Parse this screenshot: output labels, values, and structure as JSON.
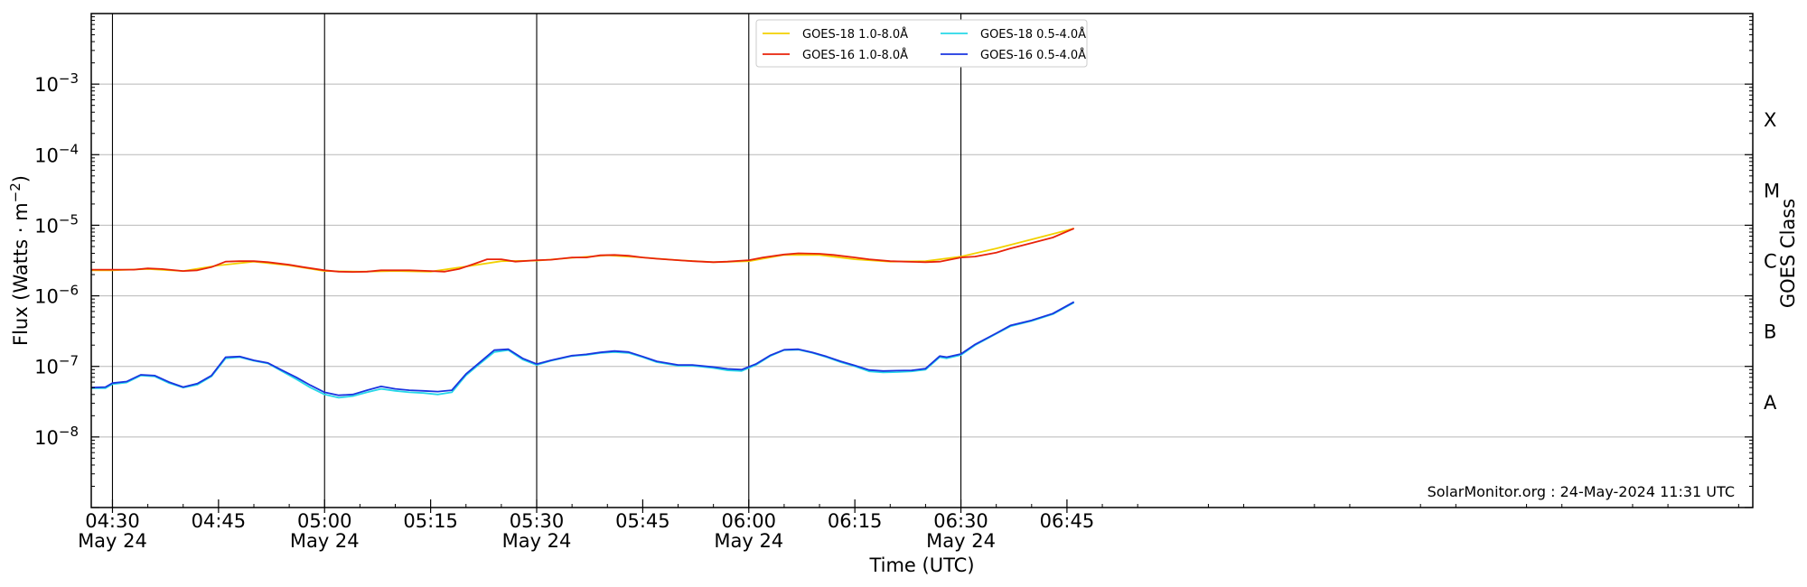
{
  "chart_data": {
    "type": "line",
    "xlabel": "Time (UTC)",
    "ylabel": "Flux (Watts · m",
    "ylabel_sup": "−2",
    "ylabel_close": ")",
    "right_label": "GOES Class",
    "credit": "SolarMonitor.org : 24-May-2024 11:31 UTC",
    "xlim_minutes": [
      27,
      262
    ],
    "ylim_log10": [
      -9,
      -2
    ],
    "yscale": "log",
    "grid": "horizontal",
    "legend_position": "top-center",
    "y_ticks": [
      {
        "exp": -8,
        "base": "10",
        "sup": "−8"
      },
      {
        "exp": -7,
        "base": "10",
        "sup": "−7"
      },
      {
        "exp": -6,
        "base": "10",
        "sup": "−6"
      },
      {
        "exp": -5,
        "base": "10",
        "sup": "−5"
      },
      {
        "exp": -4,
        "base": "10",
        "sup": "−4"
      },
      {
        "exp": -3,
        "base": "10",
        "sup": "−3"
      }
    ],
    "x_ticks": [
      {
        "t": 30,
        "label": "04:30",
        "date": "May 24",
        "major": true
      },
      {
        "t": 45,
        "label": "04:45",
        "date": "",
        "major": false
      },
      {
        "t": 60,
        "label": "05:00",
        "date": "May 24",
        "major": true
      },
      {
        "t": 75,
        "label": "05:15",
        "date": "",
        "major": false
      },
      {
        "t": 90,
        "label": "05:30",
        "date": "May 24",
        "major": true
      },
      {
        "t": 105,
        "label": "05:45",
        "date": "",
        "major": false
      },
      {
        "t": 120,
        "label": "06:00",
        "date": "May 24",
        "major": true
      },
      {
        "t": 135,
        "label": "06:15",
        "date": "",
        "major": false
      },
      {
        "t": 150,
        "label": "06:30",
        "date": "May 24",
        "major": true
      },
      {
        "t": 165,
        "label": "06:45",
        "date": "",
        "major": false
      }
    ],
    "class_labels": [
      {
        "label": "A",
        "exp": -7.5
      },
      {
        "label": "B",
        "exp": -6.5
      },
      {
        "label": "C",
        "exp": -5.5
      },
      {
        "label": "M",
        "exp": -4.5
      },
      {
        "label": "X",
        "exp": -3.5
      }
    ],
    "series": [
      {
        "name": "GOES-18 1.0-8.0Å",
        "color": "#f2d100",
        "x": [
          27,
          30,
          35,
          40,
          45,
          50,
          55,
          60,
          65,
          70,
          75,
          80,
          85,
          90,
          95,
          100,
          105,
          110,
          115,
          120,
          125,
          130,
          135,
          140,
          145,
          150,
          155,
          160,
          166
        ],
        "y": [
          2.3e-06,
          2.3e-06,
          2.4e-06,
          2.25e-06,
          2.7e-06,
          3.05e-06,
          2.7e-06,
          2.25e-06,
          2.2e-06,
          2.25e-06,
          2.2e-06,
          2.6e-06,
          3.1e-06,
          3.15e-06,
          3.45e-06,
          3.75e-06,
          3.5e-06,
          3.2e-06,
          3e-06,
          3.1e-06,
          3.8e-06,
          3.8e-06,
          3.3e-06,
          3.05e-06,
          3.1e-06,
          3.6e-06,
          4.7e-06,
          6.3e-06,
          9e-06
        ]
      },
      {
        "name": "GOES-16 1.0-8.0Å",
        "color": "#e8230a",
        "x": [
          27,
          30,
          33,
          35,
          37,
          40,
          42,
          44,
          46,
          48,
          50,
          52,
          55,
          57,
          60,
          62,
          64,
          66,
          68,
          70,
          72,
          75,
          77,
          79,
          81,
          83,
          85,
          87,
          90,
          92,
          95,
          97,
          99,
          101,
          103,
          105,
          107,
          110,
          112,
          115,
          117,
          120,
          122,
          125,
          127,
          130,
          132,
          135,
          137,
          140,
          142,
          145,
          147,
          150,
          152,
          155,
          157,
          160,
          163,
          166
        ],
        "y": [
          2.35e-06,
          2.35e-06,
          2.35e-06,
          2.45e-06,
          2.4e-06,
          2.25e-06,
          2.3e-06,
          2.55e-06,
          3.05e-06,
          3.1e-06,
          3.1e-06,
          3e-06,
          2.75e-06,
          2.55e-06,
          2.3e-06,
          2.2e-06,
          2.18e-06,
          2.2e-06,
          2.3e-06,
          2.3e-06,
          2.3e-06,
          2.25e-06,
          2.2e-06,
          2.4e-06,
          2.8e-06,
          3.3e-06,
          3.3e-06,
          3.05e-06,
          3.2e-06,
          3.25e-06,
          3.5e-06,
          3.5e-06,
          3.75e-06,
          3.8e-06,
          3.7e-06,
          3.5e-06,
          3.35e-06,
          3.2e-06,
          3.1e-06,
          3e-06,
          3.05e-06,
          3.2e-06,
          3.5e-06,
          3.85e-06,
          4e-06,
          3.95e-06,
          3.8e-06,
          3.5e-06,
          3.3e-06,
          3.1e-06,
          3.05e-06,
          3e-06,
          3.05e-06,
          3.5e-06,
          3.6e-06,
          4.1e-06,
          4.7e-06,
          5.6e-06,
          6.7e-06,
          9e-06
        ]
      },
      {
        "name": "GOES-18 0.5-4.0Å",
        "color": "#27d8e8",
        "x": [
          27,
          29,
          30,
          32,
          34,
          36,
          38,
          40,
          42,
          44,
          46,
          48,
          50,
          52,
          54,
          56,
          58,
          60,
          62,
          64,
          66,
          68,
          70,
          72,
          74,
          76,
          78,
          80,
          82,
          84,
          86,
          88,
          90,
          92,
          95,
          97,
          99,
          101,
          103,
          105,
          107,
          110,
          112,
          115,
          117,
          119,
          121,
          123,
          125,
          127,
          129,
          131,
          133,
          135,
          137,
          139,
          141,
          143,
          145,
          147,
          148,
          150,
          152,
          155,
          157,
          160,
          163,
          166
        ],
        "y": [
          4.9e-08,
          4.9e-08,
          5.6e-08,
          5.9e-08,
          7.4e-08,
          7.2e-08,
          5.8e-08,
          5e-08,
          5.5e-08,
          7.2e-08,
          1.3e-07,
          1.35e-07,
          1.2e-07,
          1.1e-07,
          8.5e-08,
          6.6e-08,
          5e-08,
          4e-08,
          3.6e-08,
          3.8e-08,
          4.3e-08,
          4.8e-08,
          4.5e-08,
          4.3e-08,
          4.2e-08,
          4e-08,
          4.3e-08,
          7.5e-08,
          1.1e-07,
          1.6e-07,
          1.7e-07,
          1.25e-07,
          1.05e-07,
          1.2e-07,
          1.4e-07,
          1.45e-07,
          1.55e-07,
          1.6e-07,
          1.55e-07,
          1.35e-07,
          1.15e-07,
          1.02e-07,
          1.02e-07,
          9.5e-08,
          8.8e-08,
          8.6e-08,
          1.05e-07,
          1.4e-07,
          1.7e-07,
          1.72e-07,
          1.55e-07,
          1.35e-07,
          1.15e-07,
          1e-07,
          8.5e-08,
          8.2e-08,
          8.3e-08,
          8.5e-08,
          9e-08,
          1.35e-07,
          1.3e-07,
          1.45e-07,
          2e-07,
          2.9e-07,
          3.7e-07,
          4.4e-07,
          5.5e-07,
          8e-07
        ]
      },
      {
        "name": "GOES-16 0.5-4.0Å",
        "color": "#1a35e0",
        "x": [
          27,
          29,
          30,
          32,
          34,
          36,
          38,
          40,
          42,
          44,
          46,
          48,
          50,
          52,
          54,
          56,
          58,
          60,
          62,
          64,
          66,
          68,
          70,
          72,
          74,
          76,
          78,
          80,
          82,
          84,
          86,
          88,
          90,
          92,
          95,
          97,
          99,
          101,
          103,
          105,
          107,
          110,
          112,
          115,
          117,
          119,
          121,
          123,
          125,
          127,
          129,
          131,
          133,
          135,
          137,
          139,
          141,
          143,
          145,
          147,
          148,
          150,
          152,
          155,
          157,
          160,
          163,
          166
        ],
        "y": [
          5e-08,
          5.1e-08,
          5.8e-08,
          6.1e-08,
          7.6e-08,
          7.4e-08,
          6e-08,
          5.1e-08,
          5.7e-08,
          7.4e-08,
          1.35e-07,
          1.38e-07,
          1.22e-07,
          1.12e-07,
          8.8e-08,
          7e-08,
          5.4e-08,
          4.3e-08,
          3.9e-08,
          4e-08,
          4.6e-08,
          5.2e-08,
          4.8e-08,
          4.6e-08,
          4.5e-08,
          4.4e-08,
          4.6e-08,
          7.8e-08,
          1.15e-07,
          1.7e-07,
          1.75e-07,
          1.3e-07,
          1.08e-07,
          1.22e-07,
          1.42e-07,
          1.48e-07,
          1.58e-07,
          1.65e-07,
          1.6e-07,
          1.38e-07,
          1.18e-07,
          1.05e-07,
          1.05e-07,
          9.8e-08,
          9.2e-08,
          9e-08,
          1.08e-07,
          1.43e-07,
          1.72e-07,
          1.75e-07,
          1.58e-07,
          1.38e-07,
          1.18e-07,
          1.03e-07,
          8.9e-08,
          8.6e-08,
          8.7e-08,
          8.8e-08,
          9.3e-08,
          1.4e-07,
          1.35e-07,
          1.5e-07,
          2.05e-07,
          2.95e-07,
          3.8e-07,
          4.5e-07,
          5.6e-07,
          8.2e-07
        ]
      }
    ]
  }
}
